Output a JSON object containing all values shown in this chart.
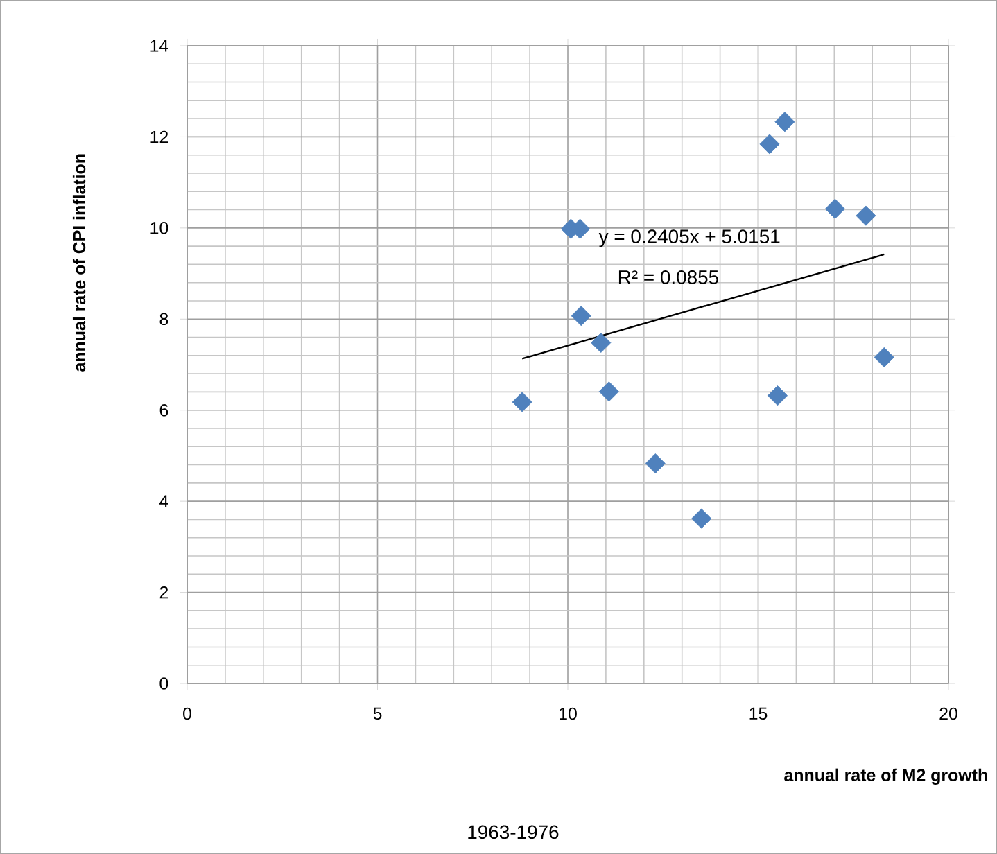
{
  "chart_data": {
    "type": "scatter",
    "xlabel": "annual rate of M2 growth",
    "ylabel": "annual rate of  CPI inflation",
    "annotations": [
      "y = 0.2405x + 5.0151",
      "R² = 0.0855",
      "1963-1976"
    ],
    "xlim": [
      0,
      20
    ],
    "xticks": [
      0,
      5,
      10,
      15,
      20
    ],
    "ylim": [
      0,
      14
    ],
    "yticks": [
      0,
      2,
      4,
      6,
      8,
      10,
      12,
      14
    ],
    "grid": true,
    "marker": "diamond",
    "series": [
      {
        "color": "#4f81bd",
        "x": [
          8.8,
          10.08,
          10.32,
          10.35,
          10.87,
          11.08,
          12.3,
          13.51,
          15.3,
          15.7,
          15.51,
          17.02,
          17.83,
          18.31
        ],
        "values": [
          6.18,
          9.98,
          9.98,
          8.07,
          7.48,
          6.41,
          4.83,
          3.62,
          11.84,
          12.33,
          6.32,
          10.42,
          10.27,
          7.16
        ]
      },
      {
        "type": "line",
        "color": "#000000",
        "marker": "none",
        "x": [
          8.8,
          18.31
        ],
        "values": [
          7.13,
          9.42
        ]
      }
    ]
  }
}
